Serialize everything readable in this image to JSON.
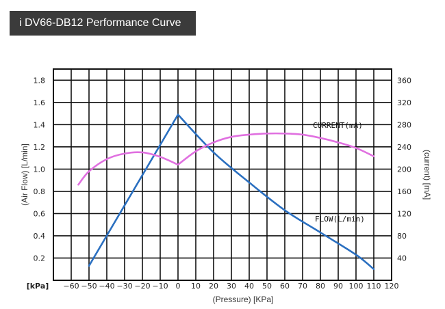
{
  "header": {
    "title": "i DV66-DB12 Performance Curve"
  },
  "chart_data": {
    "type": "line",
    "xlabel": "(Pressure) [KPa]",
    "x_unit_label": "[kPa]",
    "ylabel_left": "(Air Flow) [L/min]",
    "ylabel_right": "(current) [mA]",
    "xlim": [
      -70,
      120
    ],
    "ylim_left": [
      0,
      1.9
    ],
    "ylim_right": [
      0,
      380
    ],
    "x_ticks": [
      -60,
      -50,
      -40,
      -30,
      -20,
      -10,
      0,
      10,
      20,
      30,
      40,
      50,
      60,
      70,
      80,
      90,
      100,
      110,
      120
    ],
    "y_ticks_left": [
      0.2,
      0.4,
      0.6,
      0.8,
      1.0,
      1.2,
      1.4,
      1.6,
      1.8
    ],
    "y_tick_labels_left": [
      "0.2",
      "0.4",
      "0.6",
      "0.8",
      "1.0",
      "1.2",
      "1.4",
      "1.6",
      "1.8"
    ],
    "y_ticks_right": [
      40,
      80,
      120,
      160,
      200,
      240,
      280,
      320,
      360
    ],
    "grid": true,
    "series": [
      {
        "name": "FLOW(L/min)",
        "axis": "left",
        "color": "#2a6fc0",
        "x": [
          -50,
          0,
          20,
          40,
          60,
          80,
          100,
          110
        ],
        "y": [
          0.13,
          1.49,
          1.15,
          0.88,
          0.63,
          0.43,
          0.23,
          0.1
        ]
      },
      {
        "name": "CURRENT(mA)",
        "axis": "right",
        "color": "#e070e0",
        "x": [
          -56,
          -50,
          -40,
          -30,
          -20,
          -10,
          0,
          10,
          20,
          30,
          40,
          50,
          60,
          70,
          80,
          90,
          100,
          110
        ],
        "y": [
          172,
          196,
          218,
          228,
          230,
          222,
          208,
          232,
          248,
          258,
          262,
          264,
          264,
          262,
          256,
          248,
          238,
          223
        ]
      }
    ]
  }
}
